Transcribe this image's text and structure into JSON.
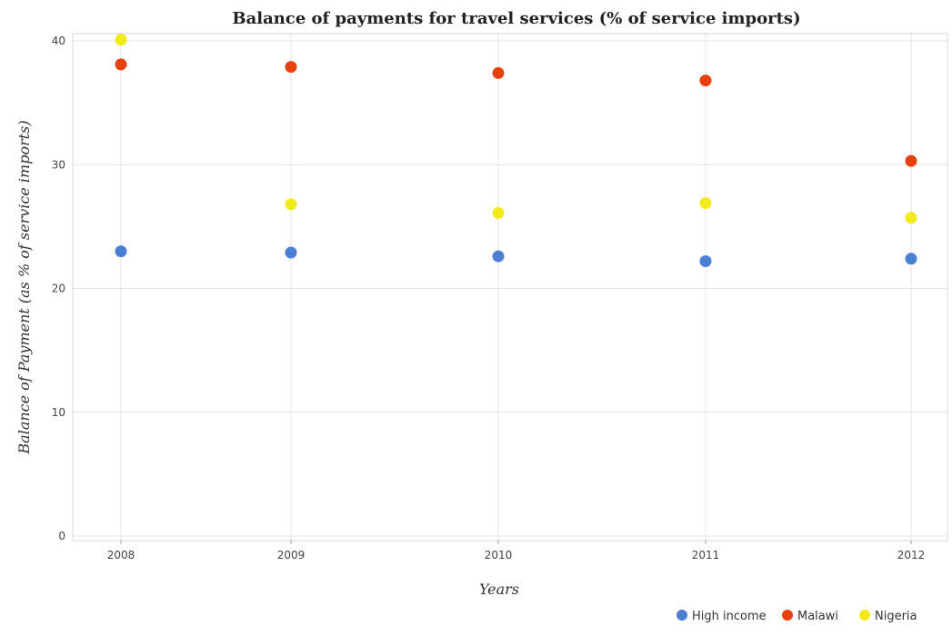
{
  "chart_data": {
    "type": "scatter",
    "title": "Balance of payments for travel services (% of service imports)",
    "xlabel": "Years",
    "ylabel": "Balance of Payment (as % of service imports)",
    "categories": [
      "2008",
      "2009",
      "2010",
      "2011",
      "2012"
    ],
    "ylim": [
      0,
      42
    ],
    "yticks": [
      0,
      10,
      20,
      30,
      40
    ],
    "grid": true,
    "legend_position": "bottom-right",
    "series": [
      {
        "name": "High income",
        "color": "#4a7fd4",
        "values": [
          23.0,
          22.9,
          22.6,
          22.2,
          22.4
        ]
      },
      {
        "name": "Malawi",
        "color": "#e8420c",
        "values": [
          38.1,
          37.9,
          37.4,
          36.8,
          30.3
        ]
      },
      {
        "name": "Nigeria",
        "color": "#f2ea1a",
        "values": [
          40.1,
          26.8,
          26.1,
          26.9,
          25.7
        ]
      }
    ]
  }
}
